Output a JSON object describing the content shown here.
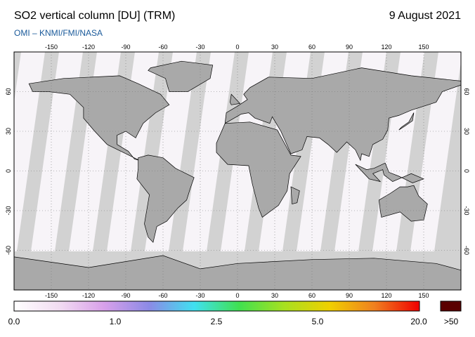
{
  "header": {
    "title": "SO2 vertical column [DU] (TRM)",
    "date": "9 August 2021",
    "credit": "OMI  –  KNMI/FMI/NASA"
  },
  "map": {
    "lon_ticks": [
      "-150",
      "-120",
      "-90",
      "-60",
      "-30",
      "0",
      "30",
      "60",
      "90",
      "120",
      "150"
    ],
    "lat_ticks": [
      "60",
      "30",
      "0",
      "-30",
      "-60"
    ],
    "colors": {
      "no_data": "#d2d2d2",
      "land": "#a9a9a9",
      "swath_background": "#f7f4f8",
      "coastline": "#000000"
    }
  },
  "colorbar": {
    "labels": [
      "0.0",
      "1.0",
      "2.5",
      "5.0",
      "20.0"
    ],
    "overflow_label": ">50",
    "overflow_color": "#5a0000",
    "gradient": [
      "#ffffff",
      "#f2dcf2",
      "#d8a0ea",
      "#8c8ae6",
      "#40e0f0",
      "#40e050",
      "#a8e020",
      "#f0d000",
      "#f08020",
      "#f00000"
    ]
  }
}
